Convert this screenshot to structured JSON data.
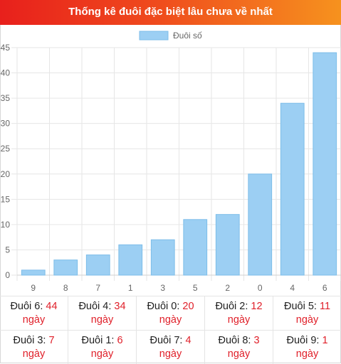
{
  "header": {
    "title": "Thống kê đuôi đặc biệt lâu chưa về nhất"
  },
  "colors": {
    "bar_fill": "#9ccff3",
    "bar_stroke": "#7dbde9",
    "header_start": "#e8201c",
    "header_end": "#f6921e",
    "accent": "#e0202a"
  },
  "chart_data": {
    "type": "bar",
    "categories": [
      "9",
      "8",
      "7",
      "1",
      "3",
      "5",
      "2",
      "0",
      "4",
      "6"
    ],
    "series": [
      {
        "name": "Đuôi số",
        "values": [
          1,
          3,
          4,
          6,
          7,
          11,
          12,
          20,
          34,
          44
        ]
      }
    ],
    "title": "",
    "xlabel": "",
    "ylabel": "",
    "ylim": [
      0,
      45
    ],
    "yticks": [
      0,
      5,
      10,
      15,
      20,
      25,
      30,
      35,
      40,
      45
    ],
    "grid": true,
    "legend_position": "top-center"
  },
  "summary": [
    [
      {
        "label": "Đuôi 6:",
        "count": "44",
        "unit": "ngày"
      },
      {
        "label": "Đuôi 4:",
        "count": "34",
        "unit": "ngày"
      },
      {
        "label": "Đuôi 0:",
        "count": "20",
        "unit": "ngày"
      },
      {
        "label": "Đuôi 2:",
        "count": "12",
        "unit": "ngày"
      },
      {
        "label": "Đuôi 5:",
        "count": "11",
        "unit": "ngày"
      }
    ],
    [
      {
        "label": "Đuôi 3:",
        "count": "7",
        "unit": "ngày"
      },
      {
        "label": "Đuôi 1:",
        "count": "6",
        "unit": "ngày"
      },
      {
        "label": "Đuôi 7:",
        "count": "4",
        "unit": "ngày"
      },
      {
        "label": "Đuôi 8:",
        "count": "3",
        "unit": "ngày"
      },
      {
        "label": "Đuôi 9:",
        "count": "1",
        "unit": "ngày"
      }
    ]
  ]
}
